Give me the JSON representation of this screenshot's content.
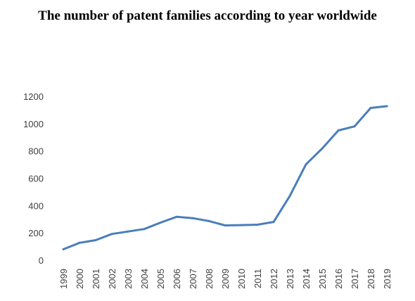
{
  "chart_data": {
    "type": "line",
    "title": "The number of patent families according to year worldwide",
    "xlabel": "",
    "ylabel": "",
    "ylim": [
      0,
      1200
    ],
    "y_ticks": [
      "0",
      "200",
      "400",
      "600",
      "800",
      "1000",
      "1200"
    ],
    "grid": false,
    "legend": "none",
    "x": [
      "1999",
      "2000",
      "2001",
      "2002",
      "2003",
      "2004",
      "2005",
      "2006",
      "2007",
      "2008",
      "2009",
      "2010",
      "2011",
      "2012",
      "2013",
      "2014",
      "2015",
      "2016",
      "2017",
      "2018",
      "2019"
    ],
    "series": [
      {
        "values": [
          80,
          127,
          147,
          192,
          210,
          228,
          275,
          318,
          308,
          287,
          255,
          257,
          260,
          280,
          470,
          702,
          818,
          950,
          980,
          1115,
          1128
        ],
        "color": "#4a7ebb"
      }
    ]
  }
}
